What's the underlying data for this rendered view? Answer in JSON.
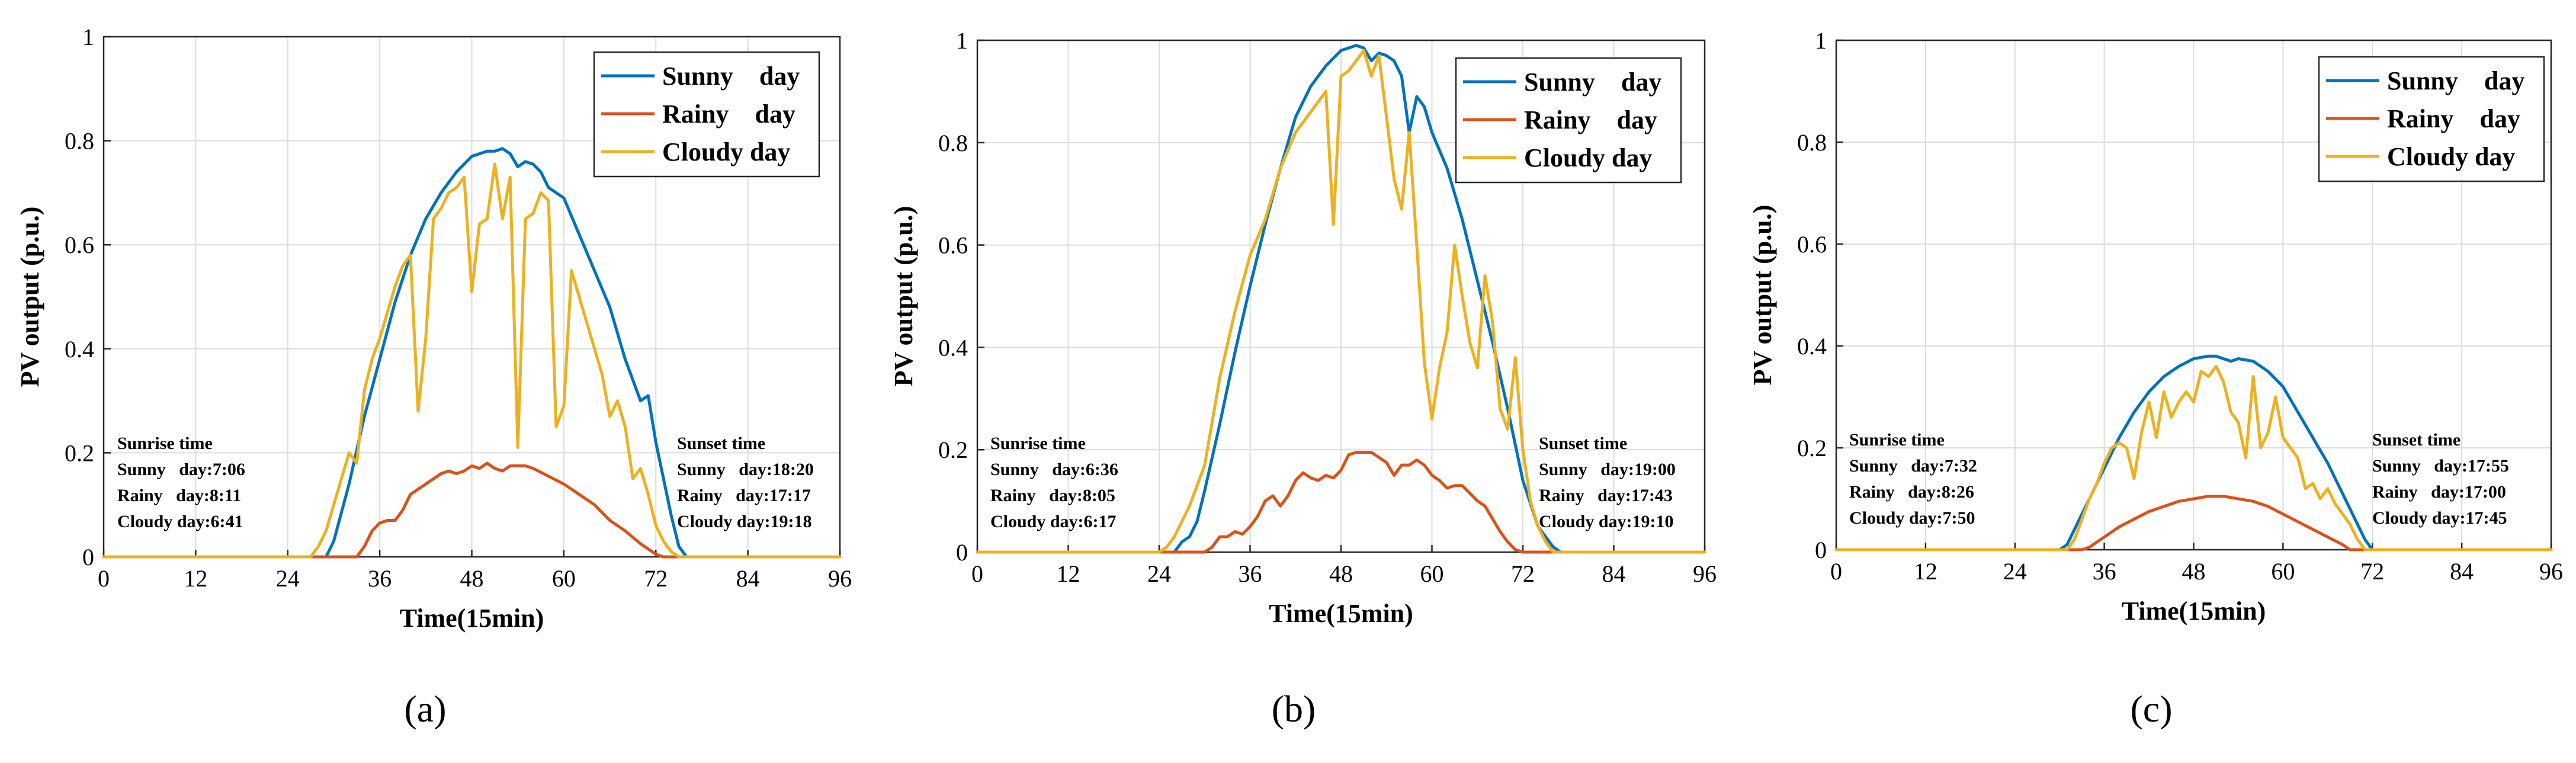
{
  "chart_data": [
    {
      "type": "line",
      "panel_label": "(a)",
      "xlabel": "Time(15min)",
      "ylabel": "PV output (p.u.)",
      "xlim": [
        0,
        96
      ],
      "ylim": [
        0,
        1
      ],
      "xticks": [
        "0",
        "12",
        "24",
        "36",
        "48",
        "60",
        "72",
        "84",
        "96"
      ],
      "yticks": [
        "0",
        "0.2",
        "0.4",
        "0.6",
        "0.8",
        "1"
      ],
      "grid": true,
      "legend_position": "top-right",
      "series": [
        {
          "name": "Sunny    day",
          "color": "#0072BD",
          "x": [
            0,
            29,
            30,
            32,
            34,
            36,
            38,
            40,
            42,
            44,
            46,
            48,
            50,
            51,
            52,
            53,
            54,
            55,
            56,
            57,
            58,
            60,
            62,
            64,
            66,
            68,
            70,
            71,
            72,
            74,
            75,
            76,
            96
          ],
          "y": [
            0,
            0,
            0.03,
            0.14,
            0.27,
            0.38,
            0.49,
            0.58,
            0.65,
            0.7,
            0.74,
            0.77,
            0.78,
            0.78,
            0.785,
            0.775,
            0.75,
            0.76,
            0.755,
            0.74,
            0.71,
            0.69,
            0.62,
            0.55,
            0.48,
            0.38,
            0.3,
            0.31,
            0.22,
            0.08,
            0.02,
            0,
            0
          ]
        },
        {
          "name": "Rainy    day",
          "color": "#D95319",
          "x": [
            0,
            33,
            34,
            35,
            36,
            37,
            38,
            39,
            40,
            42,
            44,
            45,
            46,
            47,
            48,
            49,
            50,
            51,
            52,
            53,
            54,
            55,
            56,
            58,
            60,
            62,
            64,
            66,
            68,
            70,
            72,
            73,
            96
          ],
          "y": [
            0,
            0,
            0.02,
            0.05,
            0.065,
            0.07,
            0.07,
            0.09,
            0.12,
            0.14,
            0.16,
            0.165,
            0.16,
            0.165,
            0.175,
            0.17,
            0.18,
            0.17,
            0.165,
            0.175,
            0.175,
            0.175,
            0.17,
            0.155,
            0.14,
            0.12,
            0.1,
            0.07,
            0.05,
            0.025,
            0.005,
            0,
            0
          ]
        },
        {
          "name": "Cloudy day",
          "color": "#EDB120",
          "x": [
            0,
            27,
            28,
            29,
            30,
            31,
            32,
            33,
            34,
            35,
            36,
            37,
            38,
            39,
            40,
            41,
            42,
            43,
            44,
            45,
            46,
            47,
            48,
            49,
            50,
            51,
            52,
            53,
            54,
            55,
            56,
            57,
            58,
            59,
            60,
            61,
            62,
            63,
            64,
            65,
            66,
            67,
            68,
            69,
            70,
            71,
            72,
            73,
            74,
            75,
            76,
            77,
            78,
            96
          ],
          "y": [
            0,
            0,
            0.02,
            0.05,
            0.1,
            0.15,
            0.2,
            0.18,
            0.32,
            0.38,
            0.42,
            0.47,
            0.52,
            0.56,
            0.58,
            0.28,
            0.42,
            0.65,
            0.67,
            0.7,
            0.71,
            0.73,
            0.51,
            0.64,
            0.65,
            0.755,
            0.65,
            0.73,
            0.21,
            0.65,
            0.66,
            0.7,
            0.685,
            0.25,
            0.29,
            0.55,
            0.5,
            0.45,
            0.4,
            0.35,
            0.27,
            0.3,
            0.25,
            0.15,
            0.17,
            0.12,
            0.06,
            0.03,
            0.01,
            0,
            0,
            0,
            0,
            0
          ]
        }
      ],
      "annotations": {
        "sunrise": [
          "Sunrise time",
          "Sunny   day:7:06",
          "Rainy   day:8:11",
          "Cloudy day:6:41"
        ],
        "sunset": [
          "Sunset time",
          "Sunny   day:18:20",
          "Rainy   day:17:17",
          "Cloudy day:19:18"
        ]
      }
    },
    {
      "type": "line",
      "panel_label": "(b)",
      "xlabel": "Time(15min)",
      "ylabel": "PV output (p.u.)",
      "xlim": [
        0,
        96
      ],
      "ylim": [
        0,
        1
      ],
      "xticks": [
        "0",
        "12",
        "24",
        "36",
        "48",
        "60",
        "72",
        "84",
        "96"
      ],
      "yticks": [
        "0",
        "0.2",
        "0.4",
        "0.6",
        "0.8",
        "1"
      ],
      "grid": true,
      "legend_position": "top-right",
      "series": [
        {
          "name": "Sunny    day",
          "color": "#0072BD",
          "x": [
            0,
            26,
            27,
            28,
            29,
            30,
            32,
            34,
            36,
            38,
            40,
            42,
            44,
            46,
            48,
            49,
            50,
            51,
            52,
            53,
            54,
            55,
            56,
            57,
            58,
            59,
            60,
            62,
            64,
            66,
            68,
            70,
            72,
            74,
            76,
            77,
            96
          ],
          "y": [
            0,
            0,
            0.02,
            0.03,
            0.06,
            0.12,
            0.25,
            0.39,
            0.52,
            0.64,
            0.75,
            0.85,
            0.91,
            0.95,
            0.98,
            0.985,
            0.99,
            0.985,
            0.96,
            0.975,
            0.97,
            0.96,
            0.93,
            0.82,
            0.89,
            0.87,
            0.82,
            0.75,
            0.65,
            0.53,
            0.41,
            0.28,
            0.14,
            0.05,
            0.01,
            0,
            0
          ]
        },
        {
          "name": "Rainy    day",
          "color": "#D95319",
          "x": [
            0,
            30,
            31,
            32,
            33,
            34,
            35,
            36,
            37,
            38,
            39,
            40,
            41,
            42,
            43,
            44,
            45,
            46,
            47,
            48,
            49,
            50,
            51,
            52,
            53,
            54,
            55,
            56,
            57,
            58,
            59,
            60,
            61,
            62,
            63,
            64,
            65,
            66,
            67,
            68,
            69,
            70,
            71,
            72,
            96
          ],
          "y": [
            0,
            0,
            0.01,
            0.03,
            0.03,
            0.04,
            0.035,
            0.05,
            0.07,
            0.1,
            0.11,
            0.09,
            0.11,
            0.14,
            0.155,
            0.145,
            0.14,
            0.15,
            0.145,
            0.16,
            0.19,
            0.195,
            0.195,
            0.195,
            0.185,
            0.175,
            0.15,
            0.17,
            0.17,
            0.18,
            0.17,
            0.15,
            0.14,
            0.125,
            0.13,
            0.13,
            0.115,
            0.1,
            0.09,
            0.065,
            0.04,
            0.02,
            0.005,
            0,
            0
          ]
        },
        {
          "name": "Cloudy day",
          "color": "#EDB120",
          "x": [
            0,
            24,
            25,
            26,
            27,
            28,
            30,
            32,
            34,
            36,
            38,
            40,
            42,
            44,
            46,
            47,
            48,
            49,
            50,
            51,
            52,
            53,
            54,
            55,
            56,
            57,
            58,
            59,
            60,
            61,
            62,
            63,
            64,
            65,
            66,
            67,
            68,
            69,
            70,
            71,
            72,
            73,
            74,
            75,
            76,
            77,
            96
          ],
          "y": [
            0,
            0,
            0.01,
            0.03,
            0.06,
            0.09,
            0.17,
            0.34,
            0.47,
            0.58,
            0.65,
            0.75,
            0.82,
            0.86,
            0.9,
            0.64,
            0.93,
            0.94,
            0.96,
            0.98,
            0.93,
            0.97,
            0.85,
            0.73,
            0.67,
            0.82,
            0.6,
            0.37,
            0.26,
            0.36,
            0.43,
            0.6,
            0.5,
            0.41,
            0.36,
            0.54,
            0.45,
            0.28,
            0.24,
            0.38,
            0.2,
            0.1,
            0.05,
            0.02,
            0,
            0,
            0
          ]
        }
      ],
      "annotations": {
        "sunrise": [
          "Sunrise time",
          "Sunny   day:6:36",
          "Rainy   day:8:05",
          "Cloudy day:6:17"
        ],
        "sunset": [
          "Sunset time",
          "Sunny   day:19:00",
          "Rainy   day:17:43",
          "Cloudy day:19:10"
        ]
      }
    },
    {
      "type": "line",
      "panel_label": "(c)",
      "xlabel": "Time(15min)",
      "ylabel": "PV output (p.u.)",
      "xlim": [
        0,
        96
      ],
      "ylim": [
        0,
        1
      ],
      "xticks": [
        "0",
        "12",
        "24",
        "36",
        "48",
        "60",
        "72",
        "84",
        "96"
      ],
      "yticks": [
        "0",
        "0.2",
        "0.4",
        "0.6",
        "0.8",
        "1"
      ],
      "grid": true,
      "legend_position": "top-right",
      "series": [
        {
          "name": "Sunny    day",
          "color": "#0072BD",
          "x": [
            0,
            30,
            31,
            32,
            34,
            36,
            38,
            40,
            42,
            44,
            46,
            48,
            50,
            51,
            52,
            53,
            54,
            56,
            58,
            60,
            62,
            64,
            66,
            68,
            70,
            71,
            72,
            96
          ],
          "y": [
            0,
            0,
            0.01,
            0.04,
            0.1,
            0.16,
            0.22,
            0.27,
            0.31,
            0.34,
            0.36,
            0.375,
            0.38,
            0.38,
            0.375,
            0.37,
            0.375,
            0.37,
            0.35,
            0.32,
            0.27,
            0.22,
            0.17,
            0.11,
            0.05,
            0.02,
            0,
            0
          ]
        },
        {
          "name": "Rainy    day",
          "color": "#D95319",
          "x": [
            0,
            33,
            34,
            36,
            38,
            40,
            42,
            44,
            46,
            48,
            50,
            52,
            54,
            56,
            58,
            60,
            62,
            64,
            66,
            68,
            69,
            96
          ],
          "y": [
            0,
            0,
            0.005,
            0.025,
            0.045,
            0.06,
            0.075,
            0.085,
            0.095,
            0.1,
            0.105,
            0.105,
            0.1,
            0.095,
            0.085,
            0.07,
            0.055,
            0.04,
            0.025,
            0.01,
            0,
            0
          ]
        },
        {
          "name": "Cloudy day",
          "color": "#EDB120",
          "x": [
            0,
            31,
            32,
            33,
            34,
            35,
            36,
            37,
            38,
            39,
            40,
            41,
            42,
            43,
            44,
            45,
            46,
            47,
            48,
            49,
            50,
            51,
            52,
            53,
            54,
            55,
            56,
            57,
            58,
            59,
            60,
            61,
            62,
            63,
            64,
            65,
            66,
            67,
            68,
            69,
            70,
            71,
            96
          ],
          "y": [
            0,
            0,
            0.02,
            0.06,
            0.1,
            0.13,
            0.17,
            0.2,
            0.21,
            0.2,
            0.14,
            0.23,
            0.29,
            0.22,
            0.31,
            0.26,
            0.29,
            0.31,
            0.29,
            0.35,
            0.34,
            0.36,
            0.33,
            0.27,
            0.25,
            0.18,
            0.34,
            0.2,
            0.23,
            0.3,
            0.22,
            0.2,
            0.18,
            0.12,
            0.13,
            0.1,
            0.12,
            0.09,
            0.07,
            0.05,
            0.02,
            0,
            0
          ]
        }
      ],
      "annotations": {
        "sunrise": [
          "Sunrise time",
          "Sunny   day:7:32",
          "Rainy   day:8:26",
          "Cloudy day:7:50"
        ],
        "sunset": [
          "Sunset time",
          "Sunny   day:17:55",
          "Rainy   day:17:00",
          "Cloudy day:17:45"
        ]
      }
    }
  ]
}
